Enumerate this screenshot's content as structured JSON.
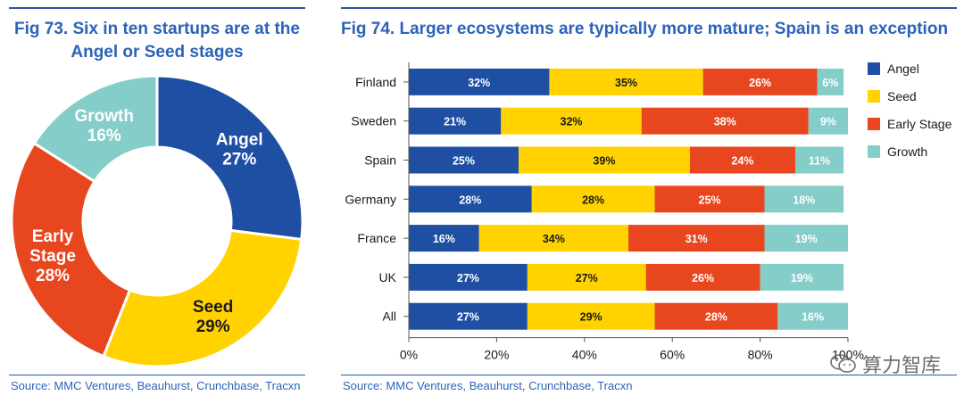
{
  "fig73": {
    "title_line1": "Fig 73. Six in ten startups are at the",
    "title_line2": "Angel or Seed stages",
    "source": "Source: MMC Ventures, Beauhurst, Crunchbase, Tracxn"
  },
  "fig74": {
    "title": "Fig 74. Larger ecosystems are typically more mature; Spain is an exception",
    "source": "Source: MMC Ventures, Beauhurst, Crunchbase, Tracxn"
  },
  "watermark": {
    "text": "算力智库",
    "icon": "wechat-icon"
  },
  "colors": {
    "angel": "#1f4fa3",
    "seed": "#ffd200",
    "early": "#e8461e",
    "growth": "#85cdc8"
  },
  "chart_data": [
    {
      "type": "pie",
      "title": "Six in ten startups are at the Angel or Seed stages",
      "slices": [
        {
          "name": "Angel",
          "value": 27,
          "label": "27%",
          "color": "#1f4fa3",
          "text_color": "#ffffff"
        },
        {
          "name": "Seed",
          "value": 29,
          "label": "29%",
          "color": "#ffd200",
          "text_color": "#1a1a1a"
        },
        {
          "name": "Early Stage",
          "value": 28,
          "label": "28%",
          "color": "#e8461e",
          "text_color": "#ffffff"
        },
        {
          "name": "Growth",
          "value": 16,
          "label": "16%",
          "color": "#85cdc8",
          "text_color": "#ffffff"
        }
      ]
    },
    {
      "type": "bar",
      "orientation": "horizontal",
      "stacked": true,
      "title": "Larger ecosystems are typically more mature; Spain is an exception",
      "categories": [
        "Finland",
        "Sweden",
        "Spain",
        "Germany",
        "France",
        "UK",
        "All"
      ],
      "series": [
        {
          "name": "Angel",
          "color": "#1f4fa3",
          "values": [
            32,
            21,
            25,
            28,
            16,
            27,
            27
          ]
        },
        {
          "name": "Seed",
          "color": "#ffd200",
          "values": [
            35,
            32,
            39,
            28,
            34,
            27,
            29
          ]
        },
        {
          "name": "Early Stage",
          "color": "#e8461e",
          "values": [
            26,
            38,
            24,
            25,
            31,
            26,
            28
          ]
        },
        {
          "name": "Growth",
          "color": "#85cdc8",
          "values": [
            6,
            9,
            11,
            18,
            19,
            19,
            16
          ]
        }
      ],
      "xlim": [
        0,
        100
      ],
      "xticks": [
        "0%",
        "20%",
        "40%",
        "60%",
        "80%",
        "100%"
      ],
      "legend": [
        "Angel",
        "Seed",
        "Early Stage",
        "Growth"
      ],
      "legend_position": "right"
    }
  ]
}
